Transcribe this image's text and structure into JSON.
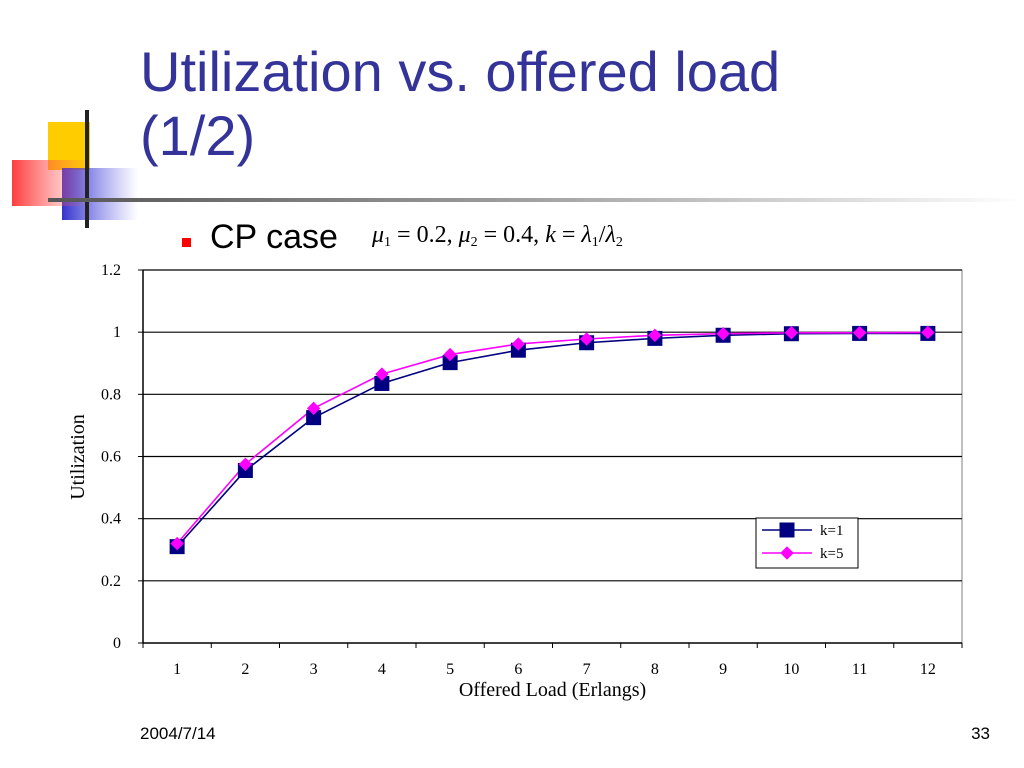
{
  "slide": {
    "title_line1": "Utilization vs. offered load",
    "title_line2": "(1/2)",
    "bullet": "CP case",
    "formula": {
      "mu1": "μ",
      "mu1_sub": "1",
      "mu1_val": " = 0.2,  ",
      "mu2": "μ",
      "mu2_sub": "2",
      "mu2_val": " = 0.4,  ",
      "k": "k",
      "eq": " = ",
      "lambda1": "λ",
      "lambda1_sub": "1",
      "slash": "/",
      "lambda2": "λ",
      "lambda2_sub": "2"
    },
    "footer_date": "2004/7/14",
    "page_number": "33",
    "colors": {
      "title": "#333399",
      "bullet": "#ff0000",
      "logo_yellow": "#ffcc00",
      "logo_blue": "#3333cc",
      "logo_red": "#ff3333"
    }
  },
  "chart_data": {
    "type": "line",
    "title": "",
    "xlabel": "Offered Load (Erlangs)",
    "ylabel": "Utilization",
    "categories": [
      "1",
      "2",
      "3",
      "4",
      "5",
      "6",
      "7",
      "8",
      "9",
      "10",
      "11",
      "12"
    ],
    "yticks": [
      "0",
      "0.2",
      "0.4",
      "0.6",
      "0.8",
      "1",
      "1.2"
    ],
    "ylim": [
      0,
      1.2
    ],
    "grid": "horizontal",
    "legend": "bottom-right",
    "series": [
      {
        "name": "k=1",
        "marker": "square",
        "color": "#000080",
        "values": [
          0.31,
          0.555,
          0.725,
          0.835,
          0.902,
          0.942,
          0.966,
          0.98,
          0.99,
          0.995,
          0.996,
          0.996
        ]
      },
      {
        "name": "k=5",
        "marker": "diamond",
        "color": "#ff00ff",
        "values": [
          0.32,
          0.575,
          0.755,
          0.865,
          0.928,
          0.962,
          0.978,
          0.99,
          0.995,
          0.998,
          0.998,
          0.999
        ]
      }
    ]
  }
}
